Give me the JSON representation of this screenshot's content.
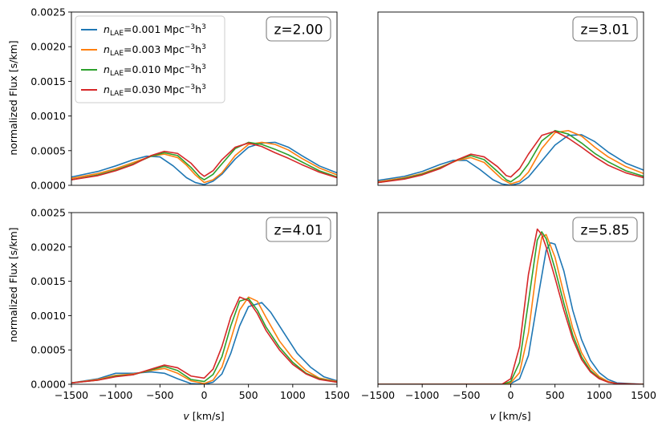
{
  "chart_data": {
    "type": "line",
    "xlabel_prefix": "v",
    "xlabel_suffix": " [km/s]",
    "ylabel": "normalized Flux [s/km]",
    "xlim": [
      -1500,
      1500
    ],
    "ylim": [
      0,
      0.0025
    ],
    "xticks": [
      -1500,
      -1000,
      -500,
      0,
      500,
      1000,
      1500
    ],
    "xtick_labels": [
      "−1500",
      "−1000",
      "−500",
      "0",
      "500",
      "1000",
      "1500"
    ],
    "yticks": [
      0,
      0.0005,
      0.001,
      0.0015,
      0.002,
      0.0025
    ],
    "ytick_labels": [
      "0.0000",
      "0.0005",
      "0.0010",
      "0.0015",
      "0.0020",
      "0.0025"
    ],
    "legend": {
      "location": "upper left",
      "entries": [
        {
          "sym": "n",
          "sub": "LAE",
          "value": "=0.001 Mpc",
          "exp": "−3",
          "tail": "h",
          "tailexp": "3",
          "color": "#1f77b4"
        },
        {
          "sym": "n",
          "sub": "LAE",
          "value": "=0.003 Mpc",
          "exp": "−3",
          "tail": "h",
          "tailexp": "3",
          "color": "#ff7f0e"
        },
        {
          "sym": "n",
          "sub": "LAE",
          "value": "=0.010 Mpc",
          "exp": "−3",
          "tail": "h",
          "tailexp": "3",
          "color": "#2ca02c"
        },
        {
          "sym": "n",
          "sub": "LAE",
          "value": "=0.030 Mpc",
          "exp": "−3",
          "tail": "h",
          "tailexp": "3",
          "color": "#d62728"
        }
      ]
    },
    "series_names": [
      "n_LAE=0.001",
      "n_LAE=0.003",
      "n_LAE=0.010",
      "n_LAE=0.030"
    ],
    "colors": [
      "#1f77b4",
      "#ff7f0e",
      "#2ca02c",
      "#d62728"
    ],
    "panels": [
      {
        "label": "z=2.00",
        "series": [
          {
            "name": "n_LAE=0.001",
            "x": [
              -1500,
              -1200,
              -1000,
              -800,
              -650,
              -500,
              -350,
              -200,
              -100,
              0,
              100,
              200,
              350,
              500,
              650,
              800,
              950,
              1100,
              1300,
              1500
            ],
            "y": [
              0.00012,
              0.0002,
              0.00028,
              0.00037,
              0.00042,
              0.00041,
              0.00028,
              0.00011,
              4e-05,
              1e-05,
              6e-05,
              0.00016,
              0.00038,
              0.00055,
              0.00061,
              0.00062,
              0.00055,
              0.00043,
              0.00028,
              0.00018
            ]
          },
          {
            "name": "n_LAE=0.003",
            "x": [
              -1500,
              -1200,
              -1000,
              -800,
              -600,
              -450,
              -300,
              -200,
              -100,
              0,
              100,
              200,
              350,
              500,
              650,
              800,
              950,
              1100,
              1300,
              1500
            ],
            "y": [
              0.0001,
              0.00017,
              0.00024,
              0.00033,
              0.00042,
              0.00045,
              0.0004,
              0.00029,
              0.00015,
              4e-05,
              8e-05,
              0.00018,
              0.00043,
              0.00059,
              0.00062,
              0.00059,
              0.00051,
              0.00039,
              0.00025,
              0.00015
            ]
          },
          {
            "name": "n_LAE=0.010",
            "x": [
              -1500,
              -1200,
              -1000,
              -800,
              -600,
              -450,
              -300,
              -150,
              -50,
              0,
              100,
              200,
              350,
              500,
              650,
              800,
              950,
              1100,
              1300,
              1500
            ],
            "y": [
              8e-05,
              0.00015,
              0.00022,
              0.00031,
              0.00042,
              0.00047,
              0.00043,
              0.00026,
              0.00012,
              8e-05,
              0.00016,
              0.00031,
              0.00053,
              0.00062,
              0.00059,
              0.00052,
              0.00044,
              0.00034,
              0.00021,
              0.00012
            ]
          },
          {
            "name": "n_LAE=0.030",
            "x": [
              -1500,
              -1200,
              -1000,
              -800,
              -600,
              -450,
              -300,
              -150,
              -50,
              0,
              100,
              200,
              350,
              500,
              650,
              800,
              950,
              1100,
              1300,
              1500
            ],
            "y": [
              8e-05,
              0.00014,
              0.00021,
              0.0003,
              0.00043,
              0.00049,
              0.00046,
              0.00032,
              0.00018,
              0.00013,
              0.00021,
              0.00037,
              0.00055,
              0.00061,
              0.00056,
              0.00047,
              0.00039,
              0.0003,
              0.00019,
              0.00011
            ]
          }
        ]
      },
      {
        "label": "z=3.01",
        "series": [
          {
            "name": "n_LAE=0.001",
            "x": [
              -1500,
              -1200,
              -1000,
              -800,
              -650,
              -500,
              -350,
              -200,
              -100,
              0,
              100,
              200,
              350,
              500,
              650,
              800,
              950,
              1100,
              1300,
              1500
            ],
            "y": [
              7e-05,
              0.00013,
              0.0002,
              0.0003,
              0.00036,
              0.00036,
              0.00023,
              8e-05,
              2e-05,
              0.0,
              3e-05,
              0.00012,
              0.00035,
              0.00058,
              0.00072,
              0.00073,
              0.00063,
              0.00048,
              0.00032,
              0.00022
            ]
          },
          {
            "name": "n_LAE=0.003",
            "x": [
              -1500,
              -1200,
              -1000,
              -800,
              -600,
              -450,
              -300,
              -200,
              -100,
              0,
              100,
              200,
              350,
              500,
              650,
              800,
              950,
              1100,
              1300,
              1500
            ],
            "y": [
              5e-05,
              0.00011,
              0.00017,
              0.00026,
              0.00036,
              0.0004,
              0.00033,
              0.00021,
              9e-05,
              2e-05,
              6e-05,
              0.00019,
              0.00053,
              0.00076,
              0.00079,
              0.00071,
              0.00055,
              0.00041,
              0.00027,
              0.00017
            ]
          },
          {
            "name": "n_LAE=0.010",
            "x": [
              -1500,
              -1200,
              -1000,
              -800,
              -600,
              -450,
              -300,
              -150,
              -50,
              0,
              100,
              200,
              350,
              500,
              650,
              800,
              950,
              1100,
              1300,
              1500
            ],
            "y": [
              4e-05,
              0.0001,
              0.00016,
              0.00025,
              0.00037,
              0.00043,
              0.00037,
              0.0002,
              8e-05,
              5e-05,
              0.00014,
              0.00031,
              0.00064,
              0.00079,
              0.00074,
              0.00061,
              0.00046,
              0.00034,
              0.00021,
              0.00013
            ]
          },
          {
            "name": "n_LAE=0.030",
            "x": [
              -1500,
              -1200,
              -1000,
              -800,
              -600,
              -450,
              -300,
              -150,
              -50,
              0,
              100,
              200,
              350,
              500,
              650,
              800,
              950,
              1100,
              1300,
              1500
            ],
            "y": [
              4e-05,
              9e-05,
              0.00015,
              0.00024,
              0.00037,
              0.00045,
              0.00041,
              0.00027,
              0.00014,
              0.00012,
              0.00024,
              0.00045,
              0.00072,
              0.00078,
              0.00068,
              0.00055,
              0.00041,
              0.00029,
              0.00018,
              0.00011
            ]
          }
        ]
      },
      {
        "label": "z=4.01",
        "series": [
          {
            "name": "n_LAE=0.001",
            "x": [
              -1500,
              -1200,
              -1000,
              -800,
              -600,
              -450,
              -300,
              -150,
              0,
              100,
              200,
              300,
              400,
              500,
              650,
              750,
              900,
              1050,
              1200,
              1350,
              1500
            ],
            "y": [
              2e-05,
              8e-05,
              0.00016,
              0.00016,
              0.00018,
              0.00016,
              8e-05,
              1e-05,
              0.0,
              3e-05,
              0.00015,
              0.00045,
              0.00085,
              0.00113,
              0.00119,
              0.00105,
              0.00075,
              0.00045,
              0.00025,
              0.00011,
              5e-05
            ]
          },
          {
            "name": "n_LAE=0.003",
            "x": [
              -1500,
              -1200,
              -1000,
              -800,
              -600,
              -450,
              -300,
              -150,
              0,
              100,
              200,
              300,
              400,
              500,
              600,
              700,
              850,
              1000,
              1150,
              1300,
              1500
            ],
            "y": [
              2e-05,
              7e-05,
              0.00013,
              0.00015,
              0.0002,
              0.00023,
              0.00016,
              5e-05,
              1e-05,
              6e-05,
              0.00025,
              0.00065,
              0.00108,
              0.00127,
              0.00121,
              0.00097,
              0.00063,
              0.00038,
              0.0002,
              9e-05,
              4e-05
            ]
          },
          {
            "name": "n_LAE=0.010",
            "x": [
              -1500,
              -1200,
              -1000,
              -800,
              -600,
              -450,
              -300,
              -150,
              0,
              100,
              200,
              300,
              400,
              500,
              600,
              700,
              850,
              1000,
              1150,
              1300,
              1500
            ],
            "y": [
              2e-05,
              6e-05,
              0.00012,
              0.00014,
              0.00021,
              0.00026,
              0.0002,
              7e-05,
              4e-05,
              0.00014,
              0.0004,
              0.00085,
              0.00121,
              0.00125,
              0.00108,
              0.00083,
              0.00054,
              0.00032,
              0.00016,
              8e-05,
              3e-05
            ]
          },
          {
            "name": "n_LAE=0.030",
            "x": [
              -1500,
              -1200,
              -1000,
              -800,
              -600,
              -450,
              -300,
              -150,
              0,
              100,
              200,
              300,
              400,
              500,
              600,
              700,
              850,
              1000,
              1150,
              1300,
              1500
            ],
            "y": [
              2e-05,
              6e-05,
              0.00011,
              0.00014,
              0.00022,
              0.00028,
              0.00024,
              0.00012,
              9e-05,
              0.00022,
              0.00055,
              0.00098,
              0.00127,
              0.00122,
              0.00103,
              0.00078,
              0.0005,
              0.00029,
              0.00015,
              7e-05,
              3e-05
            ]
          }
        ]
      },
      {
        "label": "z=5.85",
        "series": [
          {
            "name": "n_LAE=0.001",
            "x": [
              -1500,
              -500,
              -100,
              0,
              100,
              200,
              300,
              400,
              450,
              500,
              600,
              700,
              800,
              900,
              1000,
              1100,
              1200,
              1500
            ],
            "y": [
              0.0,
              0.0,
              0.0,
              1e-05,
              8e-05,
              0.00042,
              0.0012,
              0.00195,
              0.00206,
              0.00204,
              0.00165,
              0.00108,
              0.00065,
              0.00035,
              0.00017,
              7e-05,
              2e-05,
              0.0
            ]
          },
          {
            "name": "n_LAE=0.003",
            "x": [
              -1500,
              -500,
              -100,
              0,
              100,
              200,
              300,
              350,
              400,
              500,
              600,
              700,
              800,
              900,
              1000,
              1100,
              1200,
              1500
            ],
            "y": [
              0.0,
              0.0,
              0.0,
              2e-05,
              0.00017,
              0.00075,
              0.00175,
              0.00214,
              0.00218,
              0.00185,
              0.00132,
              0.00082,
              0.00046,
              0.00024,
              0.00011,
              4e-05,
              1e-05,
              0.0
            ]
          },
          {
            "name": "n_LAE=0.010",
            "x": [
              -1500,
              -500,
              -100,
              0,
              100,
              200,
              300,
              350,
              400,
              500,
              600,
              700,
              800,
              900,
              1000,
              1100,
              1200,
              1500
            ],
            "y": [
              0.0,
              0.0,
              0.0,
              4e-05,
              0.00032,
              0.0012,
              0.0021,
              0.00222,
              0.00212,
              0.00168,
              0.00118,
              0.00072,
              0.0004,
              0.0002,
              9e-05,
              3e-05,
              1e-05,
              0.0
            ]
          },
          {
            "name": "n_LAE=0.030",
            "x": [
              -1500,
              -500,
              -100,
              0,
              100,
              200,
              300,
              350,
              400,
              500,
              600,
              700,
              800,
              900,
              1000,
              1100,
              1200,
              1500
            ],
            "y": [
              0.0,
              0.0,
              0.0,
              8e-05,
              0.00055,
              0.0016,
              0.00226,
              0.00218,
              0.002,
              0.00155,
              0.00108,
              0.00066,
              0.00036,
              0.00018,
              8e-05,
              3e-05,
              1e-05,
              0.0
            ]
          }
        ]
      }
    ]
  }
}
